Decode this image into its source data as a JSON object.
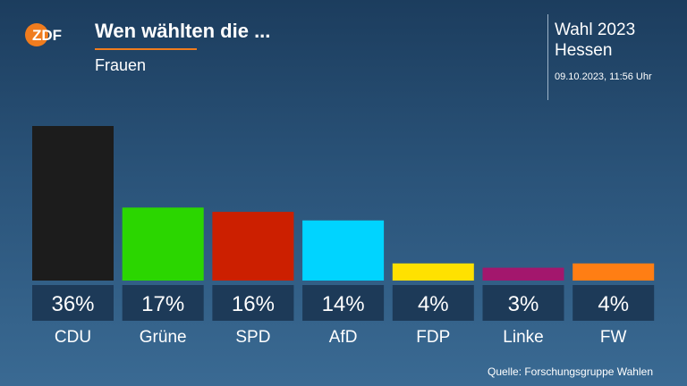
{
  "header": {
    "logo_text": "ZDF",
    "title": "Wen wählten die ...",
    "subtitle": "Frauen"
  },
  "meta": {
    "election": "Wahl 2023",
    "region": "Hessen",
    "timestamp": "09.10.2023, 11:56 Uhr"
  },
  "footer": {
    "source": "Quelle: Forschungsgruppe Wahlen"
  },
  "colors": {
    "accent": "#f07c1e",
    "value_box": "#1d3a58"
  },
  "chart_data": {
    "type": "bar",
    "title": "Wen wählten die ...",
    "subtitle": "Frauen",
    "categories": [
      "CDU",
      "Grüne",
      "SPD",
      "AfD",
      "FDP",
      "Linke",
      "FW"
    ],
    "values": [
      36,
      17,
      16,
      14,
      4,
      3,
      4
    ],
    "value_labels": [
      "36%",
      "17%",
      "16%",
      "14%",
      "4%",
      "3%",
      "4%"
    ],
    "colors": [
      "#1c1c1c",
      "#2bd600",
      "#cc1f00",
      "#00d4ff",
      "#ffe100",
      "#a3176d",
      "#ff7e14"
    ],
    "ylim": [
      0,
      36
    ],
    "grid": false,
    "legend": "none"
  }
}
